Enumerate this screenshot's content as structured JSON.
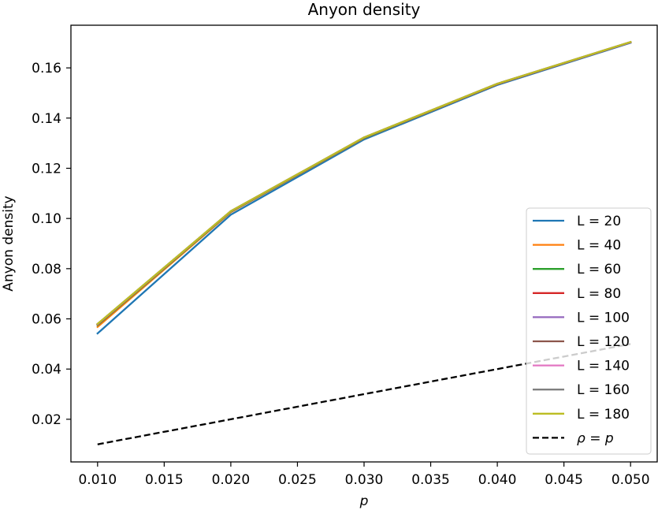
{
  "chart_data": {
    "type": "line",
    "title": "Anyon density",
    "xlabel": "p",
    "ylabel": "Anyon density",
    "x": [
      0.01,
      0.02,
      0.03,
      0.04,
      0.05
    ],
    "xlim": [
      0.008,
      0.052
    ],
    "ylim": [
      0.003,
      0.177
    ],
    "xticks": [
      "0.010",
      "0.015",
      "0.020",
      "0.025",
      "0.030",
      "0.035",
      "0.040",
      "0.045",
      "0.050"
    ],
    "yticks": [
      "0.02",
      "0.04",
      "0.06",
      "0.08",
      "0.10",
      "0.12",
      "0.14",
      "0.16"
    ],
    "grid": false,
    "legend_position": "lower-right",
    "series": [
      {
        "name": "L = 20",
        "color": "#1f77b4",
        "dash": "solid",
        "values": [
          0.0542,
          0.1015,
          0.1315,
          0.1532,
          0.17
        ]
      },
      {
        "name": "L = 40",
        "color": "#ff7f0e",
        "dash": "solid",
        "values": [
          0.0568,
          0.1025,
          0.132,
          0.1535,
          0.1702
        ]
      },
      {
        "name": "L = 60",
        "color": "#2ca02c",
        "dash": "solid",
        "values": [
          0.0575,
          0.1027,
          0.1321,
          0.1536,
          0.1702
        ]
      },
      {
        "name": "L = 80",
        "color": "#d62728",
        "dash": "solid",
        "values": [
          0.0577,
          0.1028,
          0.1322,
          0.1536,
          0.1702
        ]
      },
      {
        "name": "L = 100",
        "color": "#9467bd",
        "dash": "solid",
        "values": [
          0.0578,
          0.1028,
          0.1322,
          0.1537,
          0.1702
        ]
      },
      {
        "name": "L = 120",
        "color": "#8c564b",
        "dash": "solid",
        "values": [
          0.0579,
          0.1029,
          0.1322,
          0.1537,
          0.1703
        ]
      },
      {
        "name": "L = 140",
        "color": "#e377c2",
        "dash": "solid",
        "values": [
          0.0579,
          0.1029,
          0.1323,
          0.1537,
          0.1703
        ]
      },
      {
        "name": "L = 160",
        "color": "#7f7f7f",
        "dash": "solid",
        "values": [
          0.058,
          0.1029,
          0.1323,
          0.1537,
          0.1703
        ]
      },
      {
        "name": "L = 180",
        "color": "#bcbd22",
        "dash": "solid",
        "values": [
          0.058,
          0.1029,
          0.1323,
          0.1537,
          0.1703
        ]
      },
      {
        "name": "ρ = p",
        "color": "#000000",
        "dash": "dashed",
        "values": [
          0.01,
          0.02,
          0.03,
          0.04,
          0.05
        ]
      }
    ]
  }
}
